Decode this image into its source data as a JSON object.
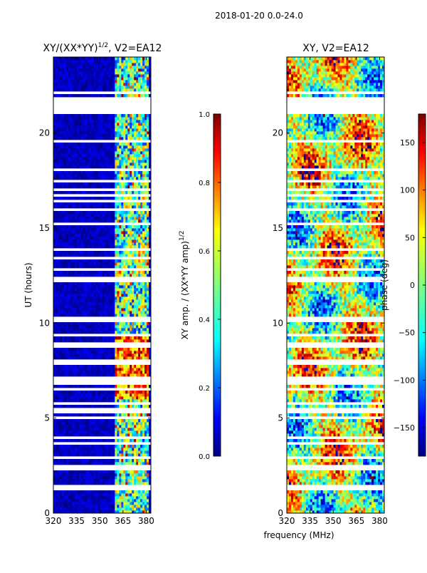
{
  "suptitle": "2018-01-20 0.0-24.0",
  "shared_xlabel": "frequency (MHz)",
  "colors": {
    "jet": [
      "#00007f",
      "#0000ff",
      "#007fff",
      "#00ffff",
      "#7fff7f",
      "#ffff00",
      "#ff7f00",
      "#ff0000",
      "#7f0000"
    ]
  },
  "chart_data": [
    {
      "type": "heatmap",
      "title": "XY/(XX*YY)",
      "title_exp": "1/2",
      "title_suffix": ", V2=EA12",
      "ylabel": "UT (hours)",
      "xlim": [
        320,
        383
      ],
      "ylim": [
        0,
        24
      ],
      "xticks": [
        320,
        335,
        350,
        365,
        380
      ],
      "yticks": [
        0,
        5,
        10,
        15,
        20
      ],
      "bright_band_mhz": [
        360,
        381
      ],
      "missing_hours": [
        [
          21.0,
          21.9
        ],
        [
          9.3,
          9.45
        ],
        [
          5.3,
          5.6
        ],
        [
          2.3,
          2.5
        ]
      ],
      "colorbar": {
        "label": "XY amp. / (XX*YY amp)",
        "label_exp": "1/2",
        "range": [
          0.0,
          1.0
        ],
        "ticks": [
          "0.0",
          "0.2",
          "0.4",
          "0.6",
          "0.8",
          "1.0"
        ]
      }
    },
    {
      "type": "heatmap",
      "title": "XY, V2=EA12",
      "xlim": [
        320,
        383
      ],
      "ylim": [
        0,
        24
      ],
      "xticks": [
        320,
        335,
        350,
        365,
        380
      ],
      "yticks": [
        0,
        5,
        10,
        15,
        20
      ],
      "missing_hours": [
        [
          21.0,
          21.9
        ],
        [
          9.3,
          9.45
        ],
        [
          5.3,
          5.6
        ],
        [
          2.3,
          2.5
        ]
      ],
      "colorbar": {
        "label": "phase (deg)",
        "range": [
          -180,
          180
        ],
        "ticks": [
          "-150",
          "-100",
          "-50",
          "0",
          "50",
          "100",
          "150"
        ]
      }
    }
  ]
}
